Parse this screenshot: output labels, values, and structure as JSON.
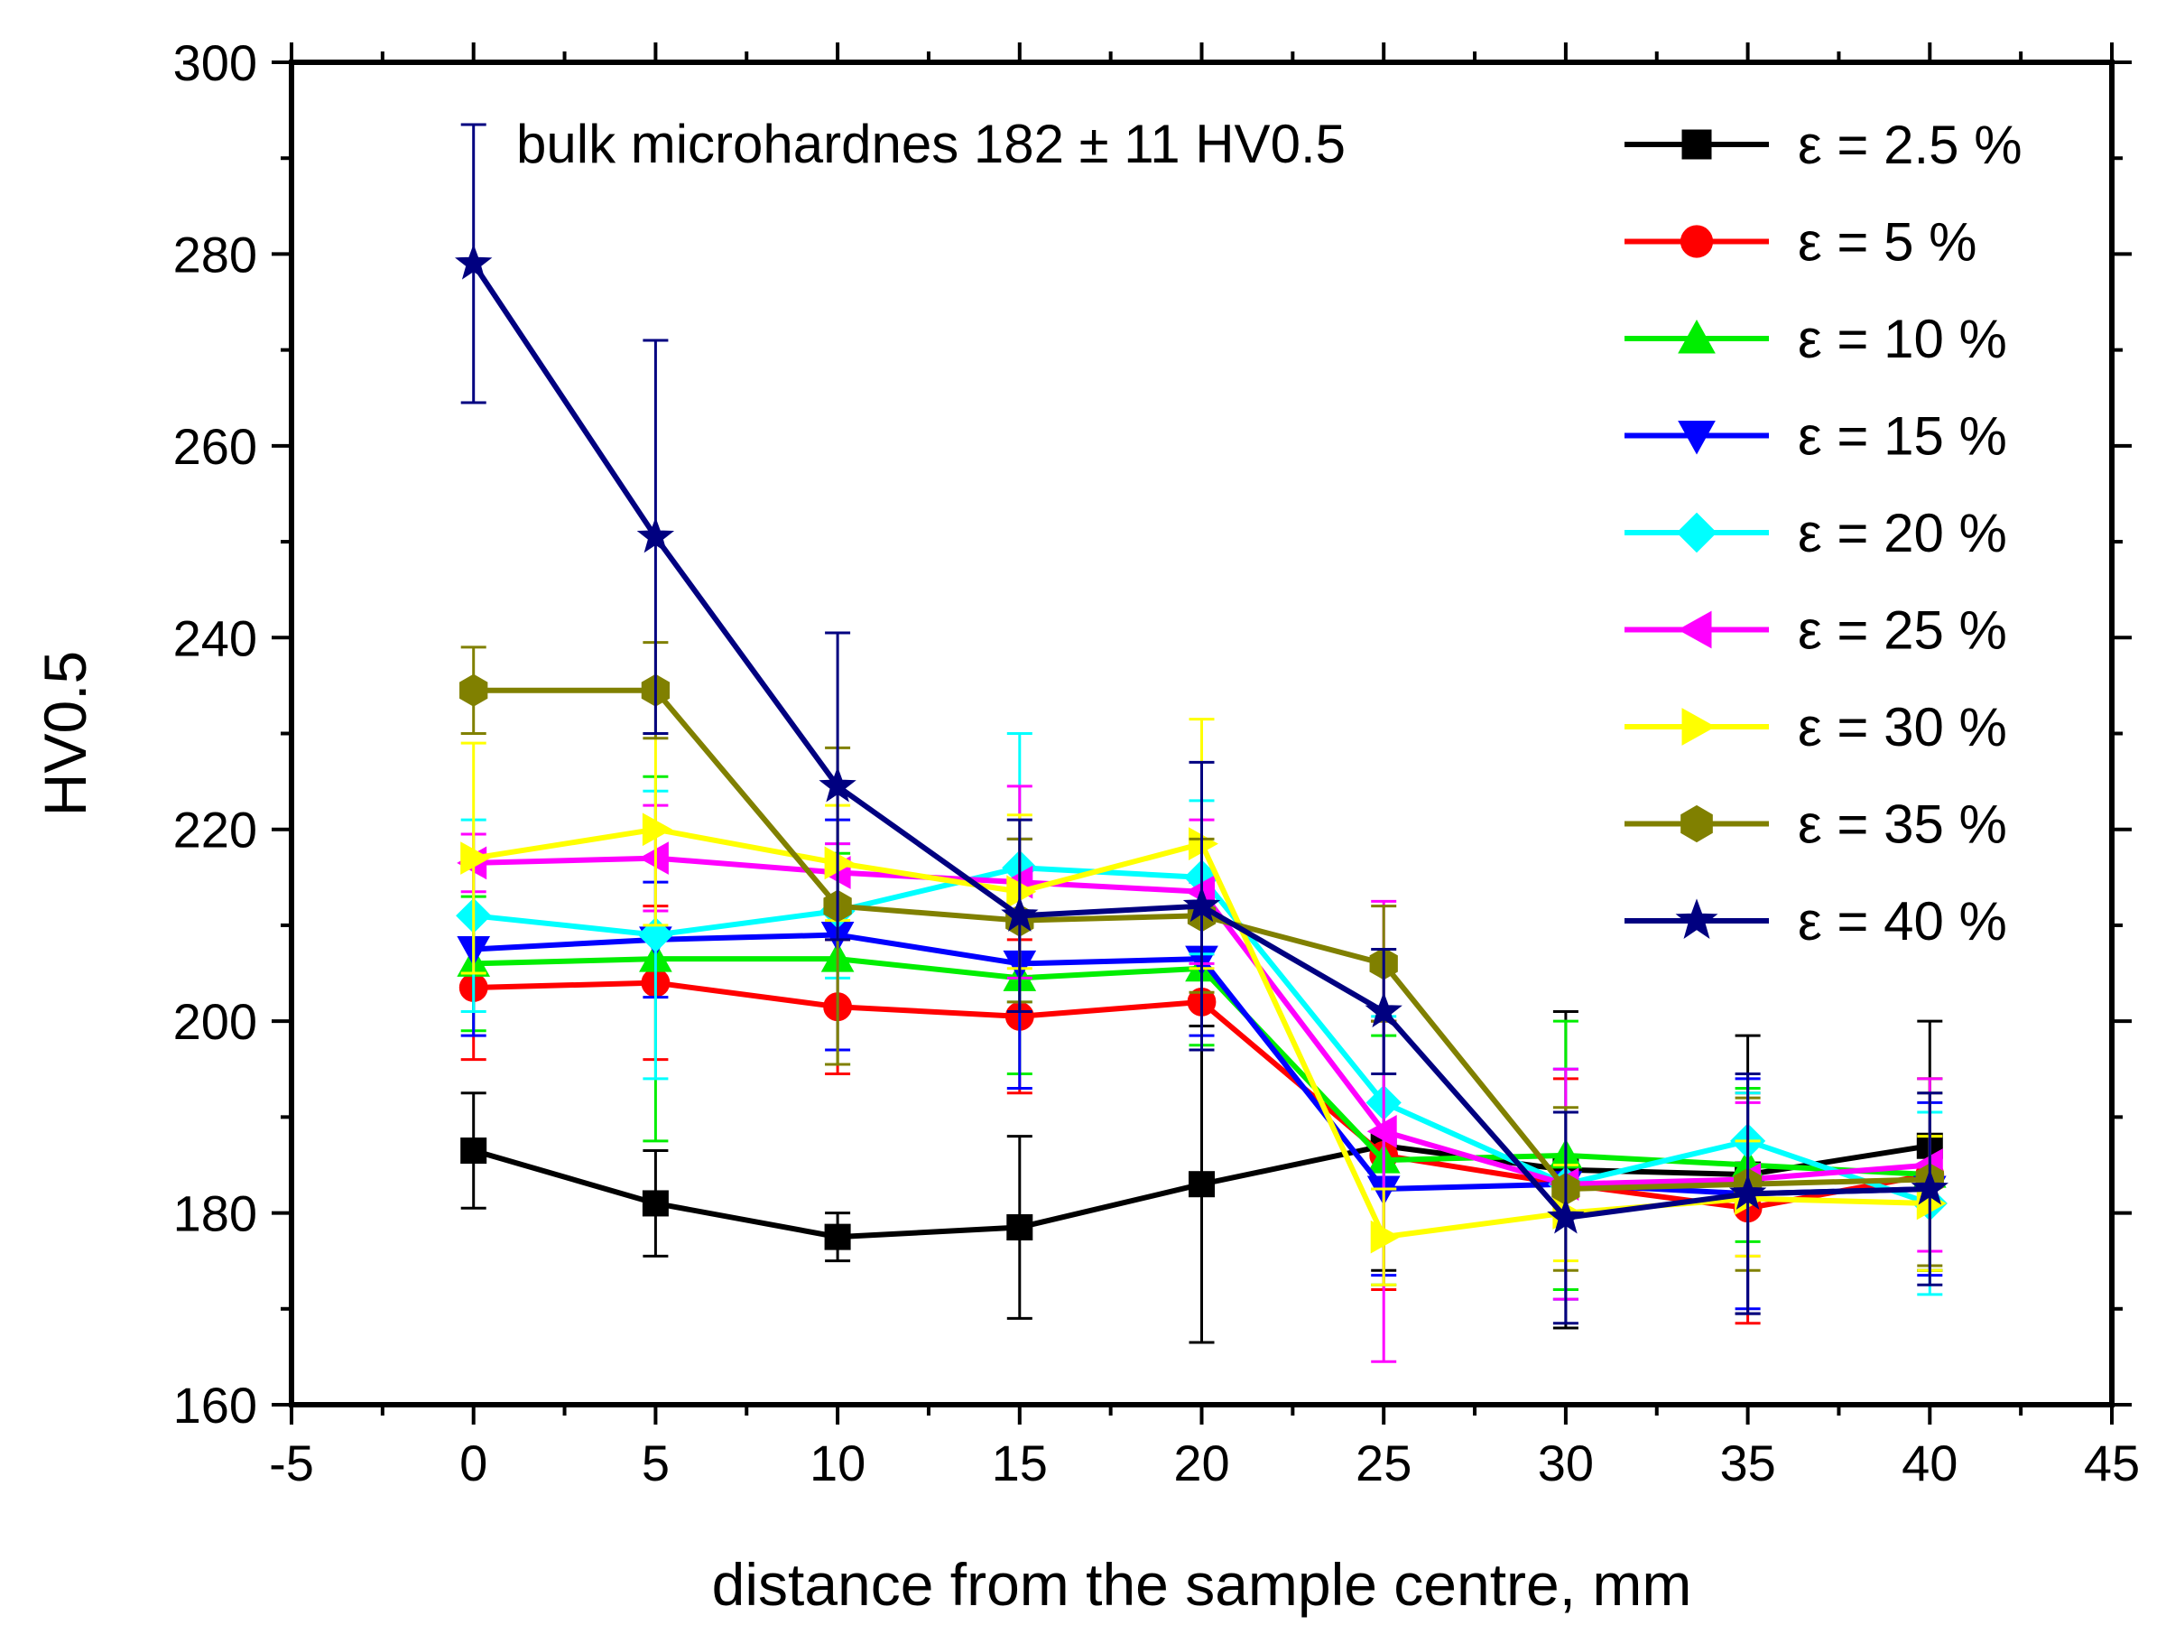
{
  "chart_data": {
    "type": "line",
    "xlabel": "distance from the sample centre, mm",
    "ylabel": "HV0.5",
    "annotation": "bulk microhardnes 182 ± 11 HV0.5",
    "xlim": [
      -5,
      45
    ],
    "ylim": [
      160,
      300
    ],
    "xticks": [
      -5,
      0,
      5,
      10,
      15,
      20,
      25,
      30,
      35,
      40,
      45
    ],
    "yticks": [
      160,
      180,
      200,
      220,
      240,
      260,
      280,
      300
    ],
    "x": [
      0,
      5,
      10,
      15,
      20,
      25,
      30,
      35,
      40
    ],
    "legend_position": "top-right",
    "series": [
      {
        "name": "ε = 2.5 %",
        "color": "#000000",
        "marker": "square",
        "values": [
          186.5,
          181,
          177.5,
          178.5,
          183,
          187,
          184.5,
          184,
          187
        ],
        "errors": [
          6,
          5.5,
          2.5,
          9.5,
          16.5,
          13,
          16.5,
          14.5,
          13
        ]
      },
      {
        "name": "ε = 5 %",
        "color": "#ff0000",
        "marker": "circle",
        "values": [
          203.5,
          204,
          201.5,
          200.5,
          202,
          186,
          183,
          180.5,
          184
        ],
        "errors": [
          7.5,
          8,
          7,
          8,
          5,
          14,
          11,
          12,
          10
        ]
      },
      {
        "name": "ε = 10 %",
        "color": "#00ee00",
        "marker": "triangle-up",
        "values": [
          206,
          206.5,
          206.5,
          204.5,
          205.5,
          185.5,
          186,
          185,
          184
        ],
        "errors": [
          7,
          19,
          11,
          10,
          8,
          13,
          14,
          8,
          10
        ]
      },
      {
        "name": "ε = 15 %",
        "color": "#0000ff",
        "marker": "triangle-down",
        "values": [
          207.5,
          208.5,
          209,
          206,
          206.5,
          182.5,
          183,
          182,
          182.5
        ],
        "errors": [
          9,
          6,
          12,
          13,
          8,
          9,
          12,
          12,
          9
        ]
      },
      {
        "name": "ε = 20 %",
        "color": "#00ffff",
        "marker": "diamond",
        "values": [
          211,
          209,
          211.5,
          216,
          215,
          191.5,
          183,
          187.5,
          181
        ],
        "errors": [
          10,
          15,
          7,
          14,
          8,
          9,
          12,
          5,
          9.5
        ]
      },
      {
        "name": "ε = 25 %",
        "color": "#ff00ff",
        "marker": "triangle-left",
        "values": [
          216.5,
          217,
          215.5,
          214.5,
          213.5,
          188.5,
          183,
          183.5,
          185
        ],
        "errors": [
          3,
          5.5,
          3,
          10,
          7.5,
          24,
          12,
          8,
          9
        ]
      },
      {
        "name": "ε = 30 %",
        "color": "#ffff00",
        "marker": "triangle-right",
        "values": [
          217,
          220,
          216.5,
          213.5,
          218.5,
          177.5,
          180,
          181.5,
          181
        ],
        "errors": [
          12,
          10,
          6,
          8,
          13,
          5,
          5,
          6,
          7
        ]
      },
      {
        "name": "ε = 35 %",
        "color": "#808000",
        "marker": "hexagon",
        "values": [
          234.5,
          234.5,
          212,
          210.5,
          211,
          206,
          182.5,
          183,
          183.5
        ],
        "errors": [
          4.5,
          5,
          16.5,
          8.5,
          8,
          6,
          8.5,
          9,
          9
        ]
      },
      {
        "name": "ε = 40 %",
        "color": "#000080",
        "marker": "star",
        "values": [
          279,
          250.5,
          224.5,
          211,
          212,
          201,
          179.5,
          182,
          182.5
        ],
        "errors": [
          14.5,
          20.5,
          16,
          10,
          15,
          6.5,
          11,
          12.5,
          10
        ]
      }
    ]
  }
}
